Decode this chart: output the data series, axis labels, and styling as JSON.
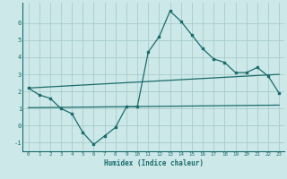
{
  "xlabel": "Humidex (Indice chaleur)",
  "ylabel": "",
  "background_color": "#cce8e8",
  "grid_color": "#aacccc",
  "line_color": "#1a6b6b",
  "xlim": [
    -0.5,
    23.5
  ],
  "ylim": [
    -1.5,
    7.2
  ],
  "xticks": [
    0,
    1,
    2,
    3,
    4,
    5,
    6,
    7,
    8,
    9,
    10,
    11,
    12,
    13,
    14,
    15,
    16,
    17,
    18,
    19,
    20,
    21,
    22,
    23
  ],
  "yticks": [
    -1,
    0,
    1,
    2,
    3,
    4,
    5,
    6
  ],
  "series1_x": [
    0,
    1,
    2,
    3,
    4,
    5,
    6,
    7,
    8,
    9,
    10,
    11,
    12,
    13,
    14,
    15,
    16,
    17,
    18,
    19,
    20,
    21,
    22,
    23
  ],
  "series1_y": [
    2.2,
    1.8,
    1.6,
    1.0,
    0.7,
    -0.4,
    -1.1,
    -0.6,
    -0.1,
    1.1,
    1.1,
    4.3,
    5.2,
    6.7,
    6.1,
    5.3,
    4.5,
    3.9,
    3.7,
    3.1,
    3.1,
    3.4,
    2.9,
    1.9
  ],
  "series2_x": [
    0,
    23
  ],
  "series2_y": [
    2.2,
    3.0
  ],
  "series3_x": [
    0,
    23
  ],
  "series3_y": [
    1.05,
    1.2
  ]
}
